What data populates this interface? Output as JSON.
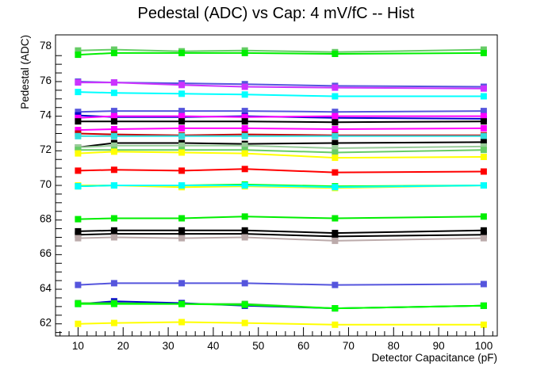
{
  "chart_data": {
    "type": "line",
    "title": "Pedestal (ADC) vs Cap: 4 mV/fC -- Hist",
    "xlabel": "Detector Capacitance (pF)",
    "ylabel": "Pedestal (ADC)",
    "xlim": [
      5,
      103
    ],
    "ylim": [
      61.2,
      78.6
    ],
    "x_ticks": [
      10,
      20,
      30,
      40,
      50,
      60,
      70,
      80,
      90,
      100
    ],
    "x_tick_labels": [
      "10",
      "20",
      "30",
      "40",
      "50",
      "60",
      "70",
      "80",
      "90",
      "100"
    ],
    "y_ticks": [
      62,
      64,
      66,
      68,
      70,
      72,
      74,
      76,
      78
    ],
    "y_tick_labels": [
      "62",
      "64",
      "66",
      "68",
      "70",
      "72",
      "74",
      "76",
      "78"
    ],
    "grid": false,
    "legend": "none",
    "x": [
      10,
      18,
      33,
      47,
      67,
      100
    ],
    "series": [
      {
        "color": "#66cc66",
        "values": [
          77.7,
          77.75,
          77.65,
          77.7,
          77.6,
          77.75
        ]
      },
      {
        "color": "#00ee00",
        "values": [
          77.45,
          77.55,
          77.55,
          77.55,
          77.5,
          77.55
        ]
      },
      {
        "color": "#5555dd",
        "values": [
          75.9,
          75.85,
          75.8,
          75.75,
          75.65,
          75.6
        ]
      },
      {
        "color": "#cc33ff",
        "values": [
          75.85,
          75.85,
          75.7,
          75.6,
          75.55,
          75.5
        ]
      },
      {
        "color": "#00ffff",
        "values": [
          75.3,
          75.25,
          75.2,
          75.15,
          75.05,
          75.05
        ]
      },
      {
        "color": "#5555dd",
        "values": [
          74.15,
          74.2,
          74.2,
          74.2,
          74.15,
          74.2
        ]
      },
      {
        "color": "#0000cc",
        "values": [
          73.95,
          73.85,
          73.85,
          73.9,
          73.8,
          73.75
        ]
      },
      {
        "color": "#ff00ff",
        "values": [
          73.8,
          73.9,
          73.9,
          73.85,
          73.9,
          73.9
        ]
      },
      {
        "color": "#000000",
        "values": [
          73.6,
          73.6,
          73.6,
          73.6,
          73.55,
          73.6
        ]
      },
      {
        "color": "#ff00ff",
        "values": [
          73.1,
          73.15,
          73.2,
          73.2,
          73.15,
          73.2
        ]
      },
      {
        "color": "#cc0000",
        "values": [
          72.9,
          72.85,
          72.8,
          72.85,
          72.8,
          72.8
        ]
      },
      {
        "color": "#33dddd",
        "values": [
          72.75,
          72.75,
          72.75,
          72.75,
          72.75,
          72.75
        ]
      },
      {
        "color": "#000000",
        "values": [
          72.1,
          72.35,
          72.35,
          72.3,
          72.35,
          72.4
        ]
      },
      {
        "color": "#99cc99",
        "values": [
          72.1,
          72.2,
          72.2,
          72.2,
          72.05,
          72.15
        ]
      },
      {
        "color": "#66cc66",
        "values": [
          71.95,
          71.95,
          71.95,
          71.95,
          71.8,
          71.95
        ]
      },
      {
        "color": "#ffff00",
        "values": [
          71.75,
          71.85,
          71.8,
          71.75,
          71.5,
          71.55
        ]
      },
      {
        "color": "#ff0000",
        "values": [
          70.75,
          70.8,
          70.75,
          70.85,
          70.65,
          70.7
        ]
      },
      {
        "color": "#ffff00",
        "values": [
          69.9,
          69.9,
          69.8,
          69.85,
          69.75,
          69.9
        ]
      },
      {
        "color": "#00ff00",
        "values": [
          69.85,
          69.9,
          69.9,
          69.95,
          69.85,
          69.9
        ]
      },
      {
        "color": "#00ffff",
        "values": [
          69.85,
          69.9,
          69.9,
          69.9,
          69.8,
          69.9
        ]
      },
      {
        "color": "#00ee00",
        "values": [
          67.95,
          68.0,
          68.0,
          68.1,
          68.0,
          68.1
        ]
      },
      {
        "color": "#000000",
        "values": [
          67.25,
          67.3,
          67.3,
          67.3,
          67.15,
          67.3
        ]
      },
      {
        "color": "#000000",
        "values": [
          67.05,
          67.1,
          67.1,
          67.1,
          66.95,
          67.05
        ]
      },
      {
        "color": "#bbaaaa",
        "values": [
          66.85,
          66.9,
          66.85,
          66.9,
          66.7,
          66.85
        ]
      },
      {
        "color": "#5555dd",
        "values": [
          64.15,
          64.25,
          64.25,
          64.25,
          64.15,
          64.2
        ]
      },
      {
        "color": "#0000cc",
        "values": [
          63.05,
          63.2,
          63.1,
          62.95,
          62.8,
          62.95
        ]
      },
      {
        "color": "#33cc33",
        "values": [
          63.1,
          63.1,
          63.05,
          63.05,
          62.8,
          62.95
        ]
      },
      {
        "color": "#00ff00",
        "values": [
          63.05,
          63.05,
          63.05,
          63.0,
          62.8,
          62.95
        ]
      },
      {
        "color": "#ffff00",
        "values": [
          61.9,
          61.95,
          62.0,
          61.95,
          61.85,
          61.85
        ]
      }
    ]
  }
}
